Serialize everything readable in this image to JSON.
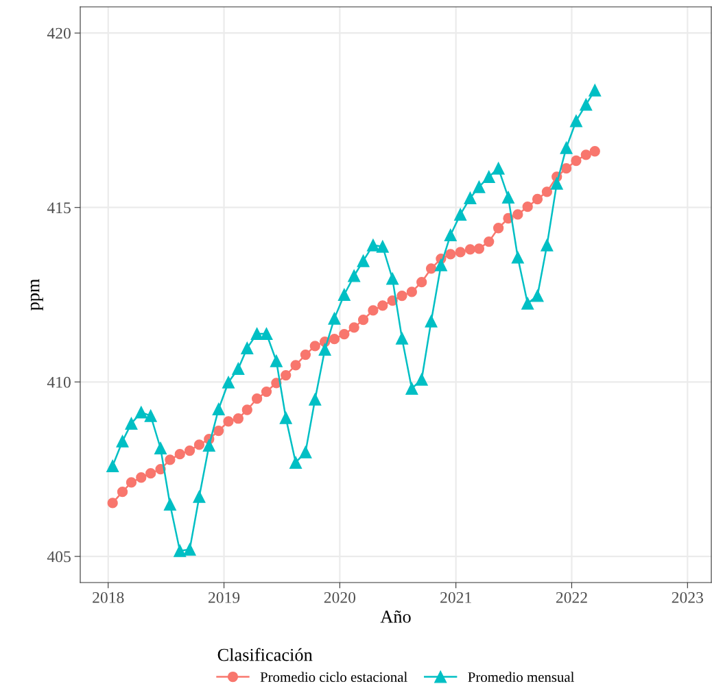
{
  "chart_data": {
    "type": "line",
    "xlabel": "Año",
    "ylabel": "ppm",
    "legend_title": "Clasificación",
    "legend": "bottom",
    "grid": true,
    "x": [
      "2018-01-15",
      "2018-02-15",
      "2018-03-15",
      "2018-04-15",
      "2018-05-15",
      "2018-06-15",
      "2018-07-15",
      "2018-08-15",
      "2018-09-15",
      "2018-10-15",
      "2018-11-15",
      "2018-12-15",
      "2019-01-15",
      "2019-02-15",
      "2019-03-15",
      "2019-04-15",
      "2019-05-15",
      "2019-06-15",
      "2019-07-15",
      "2019-08-15",
      "2019-09-15",
      "2019-10-15",
      "2019-11-15",
      "2019-12-15",
      "2020-01-15",
      "2020-02-15",
      "2020-03-15",
      "2020-04-15",
      "2020-05-15",
      "2020-06-15",
      "2020-07-15",
      "2020-08-15",
      "2020-09-15",
      "2020-10-15",
      "2020-11-15",
      "2020-12-15",
      "2021-01-15",
      "2021-02-15",
      "2021-03-15",
      "2021-04-15",
      "2021-05-15",
      "2021-06-15",
      "2021-07-15",
      "2021-08-15",
      "2021-09-15",
      "2021-10-15",
      "2021-11-15",
      "2021-12-15",
      "2022-01-15",
      "2022-02-15",
      "2022-03-15"
    ],
    "series": [
      {
        "name": "Promedio ciclo estacional",
        "color": "#f8766d",
        "marker": "circle",
        "values": [
          406.53,
          406.85,
          407.12,
          407.26,
          407.38,
          407.5,
          407.77,
          407.93,
          408.03,
          408.2,
          408.36,
          408.6,
          408.87,
          408.95,
          409.2,
          409.52,
          409.72,
          409.97,
          410.19,
          410.48,
          410.78,
          411.03,
          411.15,
          411.23,
          411.37,
          411.56,
          411.78,
          412.05,
          412.19,
          412.33,
          412.47,
          412.58,
          412.86,
          413.25,
          413.53,
          413.66,
          413.72,
          413.8,
          413.82,
          414.02,
          414.41,
          414.69,
          414.8,
          415.02,
          415.24,
          415.45,
          415.88,
          416.12,
          416.34,
          416.51,
          416.61
        ]
      },
      {
        "name": "Promedio mensual",
        "color": "#00bfc4",
        "marker": "triangle",
        "values": [
          407.59,
          408.3,
          408.81,
          409.13,
          409.03,
          408.1,
          406.49,
          405.16,
          405.2,
          406.71,
          408.18,
          409.22,
          409.99,
          410.38,
          410.97,
          411.38,
          411.38,
          410.6,
          408.97,
          407.69,
          407.99,
          409.5,
          410.93,
          411.82,
          412.5,
          413.04,
          413.47,
          413.92,
          413.88,
          412.96,
          411.25,
          409.81,
          410.07,
          411.74,
          413.35,
          414.21,
          414.8,
          415.27,
          415.59,
          415.88,
          416.12,
          415.29,
          413.57,
          412.25,
          412.47,
          413.92,
          415.69,
          416.71,
          417.48,
          417.95,
          418.36
        ]
      }
    ],
    "xlim": [
      "2017-10-05",
      "2023-03-17"
    ],
    "xticks": [
      {
        "value": "2018-01-01",
        "label": "2018"
      },
      {
        "value": "2019-01-01",
        "label": "2019"
      },
      {
        "value": "2020-01-01",
        "label": "2020"
      },
      {
        "value": "2021-01-01",
        "label": "2021"
      },
      {
        "value": "2022-01-01",
        "label": "2022"
      },
      {
        "value": "2023-01-01",
        "label": "2023"
      }
    ],
    "ylim": [
      404.25,
      420.75
    ],
    "yticks": [
      405,
      410,
      415,
      420
    ]
  }
}
